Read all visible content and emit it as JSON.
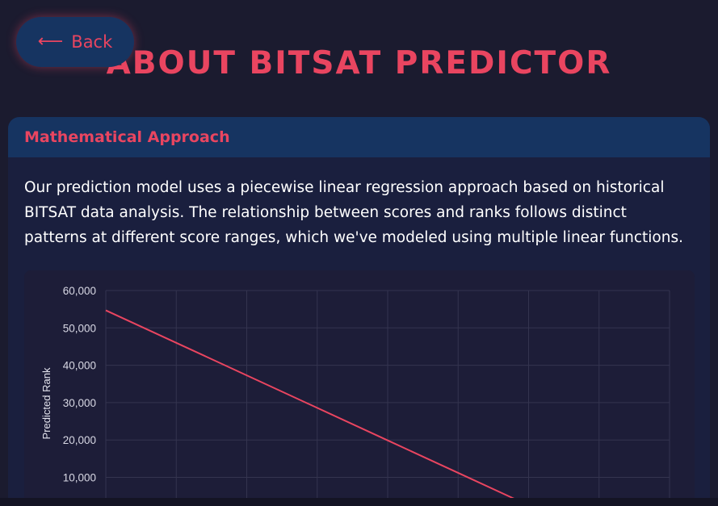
{
  "back_button": {
    "label": "Back",
    "icon": "arrow-left-icon"
  },
  "title": "ABOUT BITSAT PREDICTOR",
  "card": {
    "heading": "Mathematical Approach",
    "paragraph": "Our prediction model uses a piecewise linear regression approach based on historical BITSAT data analysis. The relationship between scores and ranks follows distinct patterns at different score ranges, which we've modeled using multiple linear functions."
  },
  "colors": {
    "accent": "#e94560",
    "header_bg": "#163461",
    "page_bg": "#1b1b2f",
    "line": "#e94560"
  },
  "chart_data": {
    "type": "line",
    "title": "",
    "xlabel": "",
    "ylabel": "Predicted Rank",
    "ylim": [
      0,
      60000
    ],
    "yticks": [
      10000,
      20000,
      30000,
      40000,
      50000,
      60000
    ],
    "ytick_labels": [
      "10,000",
      "20,000",
      "30,000",
      "40,000",
      "50,000",
      "60,000"
    ],
    "grid": true,
    "x_categories": 9,
    "series": [
      {
        "values": [
          {
            "x": 0,
            "y": 54700
          },
          {
            "x": 1,
            "y": 46000
          },
          {
            "x": 2,
            "y": 37300
          },
          {
            "x": 3,
            "y": 28600
          },
          {
            "x": 4,
            "y": 19900
          },
          {
            "x": 5,
            "y": 11200
          },
          {
            "x": 6,
            "y": 2500
          }
        ]
      }
    ]
  }
}
